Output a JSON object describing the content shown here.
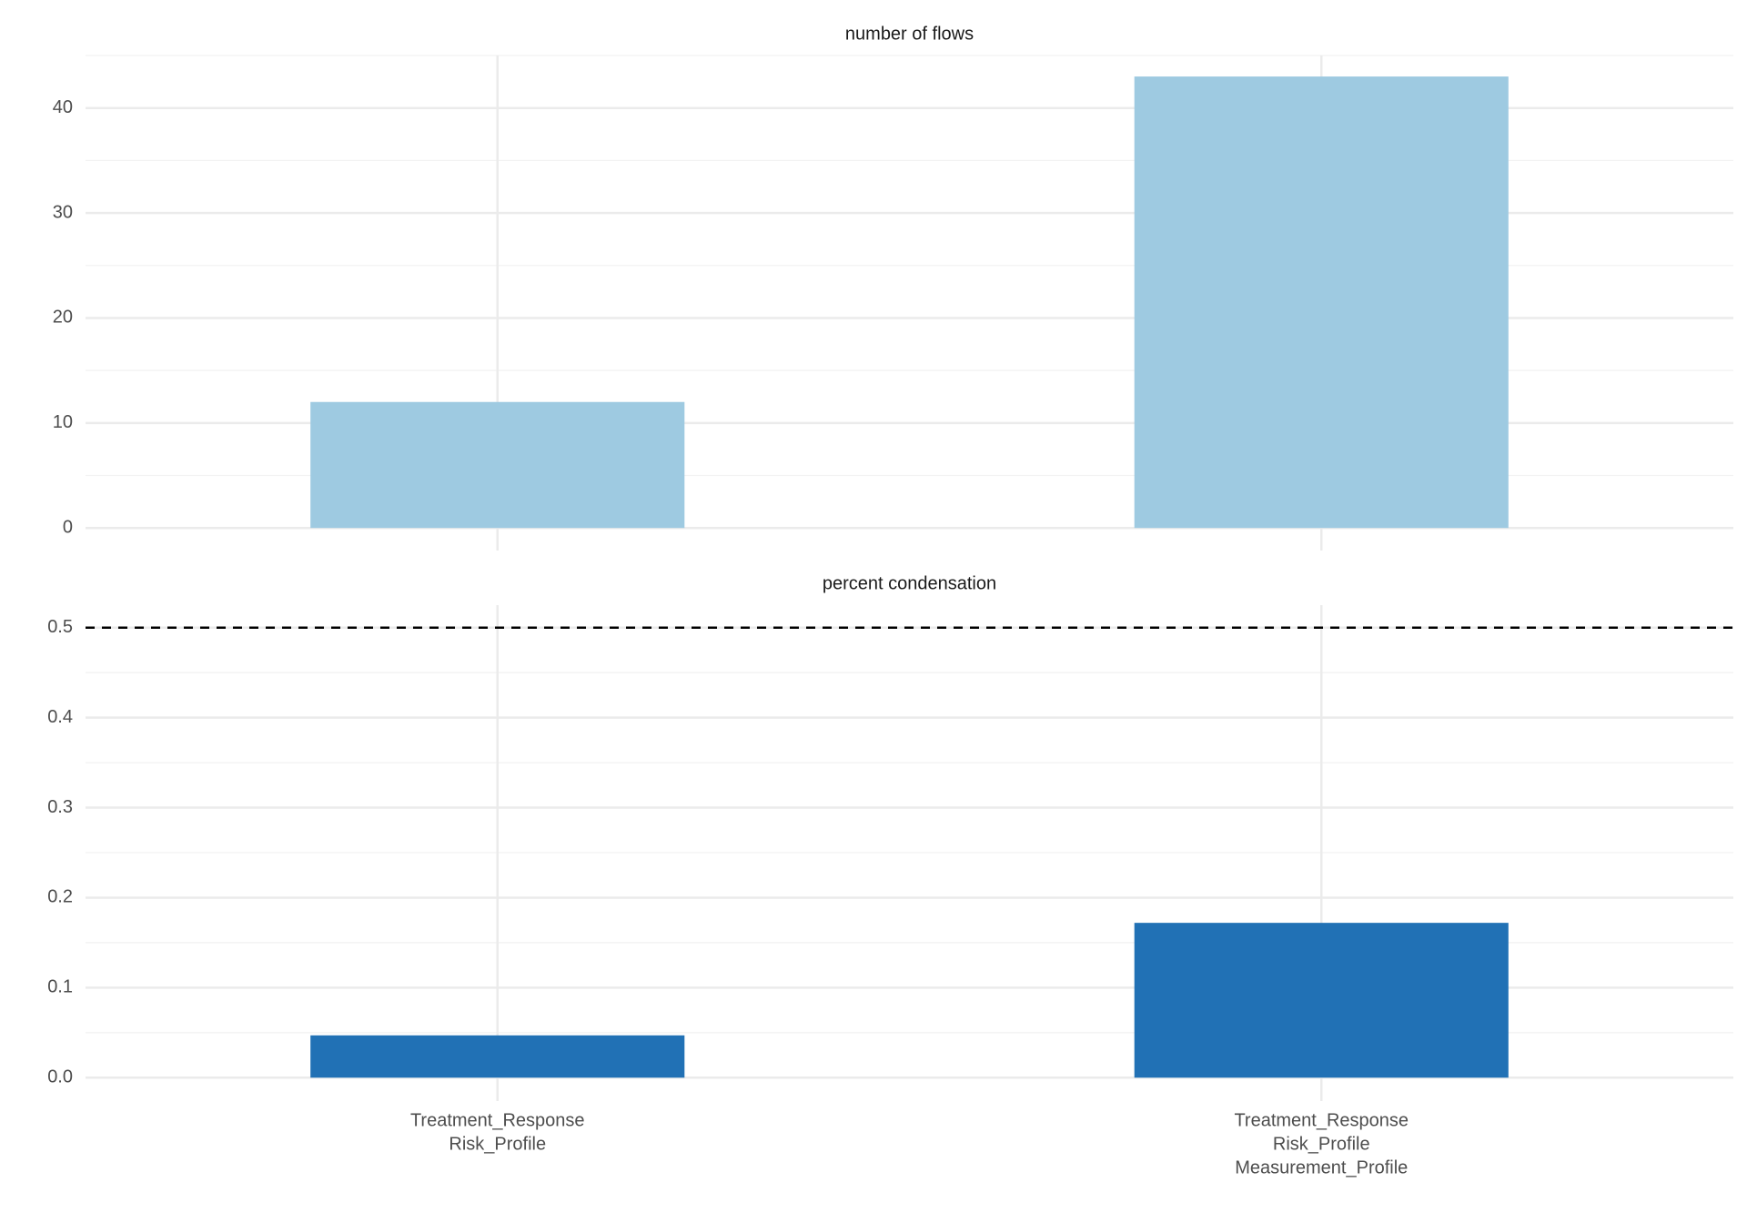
{
  "chart_data": [
    {
      "type": "bar",
      "title": "number of flows",
      "values": [
        12,
        43
      ],
      "color": "#9ecae1",
      "ylim": [
        -2.15,
        45
      ],
      "yticks": [
        0,
        10,
        20,
        30,
        40
      ],
      "yminorticks": [
        5,
        15,
        25,
        35,
        45
      ],
      "grid": true
    },
    {
      "type": "bar",
      "title": "percent condensation",
      "categories": [
        [
          "Treatment_Response",
          "Risk_Profile"
        ],
        [
          "Treatment_Response",
          "Risk_Profile",
          "Measurement_Profile"
        ]
      ],
      "values": [
        0.047,
        0.172
      ],
      "color": "#2171b5",
      "ylim": [
        -0.026,
        0.525
      ],
      "yticks": [
        {
          "value": 0,
          "label": "0.0"
        },
        0.1,
        0.2,
        0.3,
        0.4,
        0.5
      ],
      "yminorticks": [
        0.05,
        0.15,
        0.25,
        0.35,
        0.45
      ],
      "grid": true,
      "hline": 0.5
    }
  ]
}
